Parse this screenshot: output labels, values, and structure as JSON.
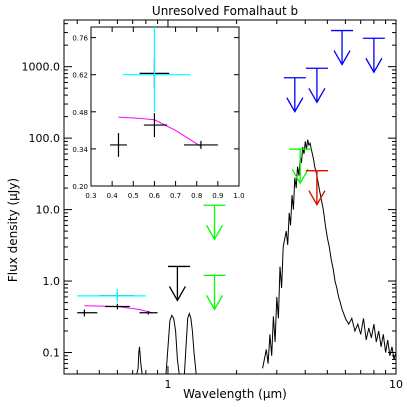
{
  "chart_data": [
    {
      "type": "scatter",
      "title": "Unresolved Fomalhaut b",
      "xlabel": "Wavelength (μm)",
      "ylabel": "Flux density (μJy)",
      "xscale": "log",
      "yscale": "log",
      "xlim": [
        0.35,
        10
      ],
      "ylim": [
        0.05,
        4500
      ],
      "x_tick_labels": [
        "1",
        "10"
      ],
      "y_tick_labels": [
        "0.1",
        "1.0",
        "10.0",
        "100.0",
        "1000.0"
      ],
      "series": [
        {
          "kind": "model_spectrum",
          "color": "#000000",
          "x": [
            2.6,
            2.7,
            2.75,
            2.8,
            2.85,
            2.9,
            2.95,
            3.0,
            3.05,
            3.1,
            3.15,
            3.2,
            3.3,
            3.35,
            3.4,
            3.45,
            3.5,
            3.55,
            3.6,
            3.65,
            3.7,
            3.75,
            3.8,
            3.85,
            3.9,
            3.95,
            4.0,
            4.05,
            4.1,
            4.15,
            4.2,
            4.25,
            4.3,
            4.35,
            4.4,
            4.5,
            4.6,
            4.7,
            4.8,
            4.9,
            5.0,
            5.1,
            5.2,
            5.3,
            5.4,
            5.5,
            5.6,
            5.7,
            5.8,
            5.9,
            6.0,
            6.2,
            6.4,
            6.6,
            6.8,
            7.0,
            7.2,
            7.4,
            7.6,
            7.8,
            8.0,
            8.2,
            8.4,
            8.6,
            8.8,
            9.0,
            9.2,
            9.4,
            9.6,
            9.8,
            10.0
          ],
          "y": [
            0.06,
            0.11,
            0.07,
            0.18,
            0.09,
            0.32,
            0.14,
            0.6,
            0.3,
            1.6,
            0.8,
            3.0,
            5.0,
            3.2,
            9.0,
            6.0,
            16.0,
            10.0,
            28.0,
            20.0,
            40.0,
            30.0,
            55.0,
            45.0,
            75.0,
            60.0,
            90.0,
            70.0,
            95.0,
            80.0,
            85.0,
            70.0,
            60.0,
            50.0,
            40.0,
            30.0,
            20.0,
            14.0,
            10.0,
            6.0,
            4.0,
            3.0,
            2.0,
            1.5,
            1.0,
            0.8,
            0.6,
            0.5,
            0.4,
            0.35,
            0.3,
            0.25,
            0.3,
            0.2,
            0.25,
            0.18,
            0.3,
            0.15,
            0.22,
            0.16,
            0.25,
            0.14,
            0.2,
            0.12,
            0.18,
            0.1,
            0.15,
            0.09,
            0.12,
            0.08,
            0.1
          ]
        },
        {
          "kind": "model_spectrum",
          "color": "#000000",
          "x": [
            0.73,
            0.74,
            0.745,
            0.75,
            0.76,
            0.77
          ],
          "y": [
            0.05,
            0.06,
            0.1,
            0.12,
            0.07,
            0.05
          ]
        },
        {
          "kind": "model_spectrum",
          "color": "#000000",
          "x": [
            0.98,
            1.0,
            1.02,
            1.04,
            1.06,
            1.08,
            1.1,
            1.12
          ],
          "y": [
            0.05,
            0.12,
            0.28,
            0.33,
            0.3,
            0.2,
            0.08,
            0.05
          ]
        },
        {
          "kind": "model_spectrum",
          "color": "#000000",
          "x": [
            1.18,
            1.2,
            1.22,
            1.24,
            1.26,
            1.28,
            1.3,
            1.33
          ],
          "y": [
            0.05,
            0.12,
            0.3,
            0.35,
            0.3,
            0.2,
            0.1,
            0.05
          ]
        },
        {
          "kind": "fit_curve",
          "color": "#ff00ff",
          "x": [
            0.43,
            0.6,
            0.75,
            0.85
          ],
          "y": [
            0.45,
            0.44,
            0.4,
            0.36
          ]
        },
        {
          "kind": "errorbar",
          "color": "#000000",
          "points": [
            {
              "x": 0.43,
              "y": 0.36,
              "xlo": 0.4,
              "xhi": 0.49,
              "ylo": 0.32,
              "yhi": 0.4
            },
            {
              "x": 0.6,
              "y": 0.44,
              "xlo": 0.53,
              "xhi": 0.68,
              "ylo": 0.4,
              "yhi": 0.48
            },
            {
              "x": 0.6,
              "y": 0.62,
              "xlo": 0.5,
              "xhi": 0.71,
              "ylo": 0.55,
              "yhi": 0.7
            },
            {
              "x": 0.82,
              "y": 0.36,
              "xlo": 0.75,
              "xhi": 0.9,
              "ylo": 0.34,
              "yhi": 0.38
            }
          ]
        },
        {
          "kind": "errorbar",
          "color": "#00ffff",
          "points": [
            {
              "x": 0.6,
              "y": 0.62,
              "xlo": 0.4,
              "xhi": 0.8,
              "ylo": 0.5,
              "yhi": 0.78
            }
          ]
        },
        {
          "kind": "upper_limit",
          "color": "#000000",
          "points": [
            {
              "x": 1.1,
              "y": 1.6,
              "xlo": 1.0,
              "xhi": 1.25
            }
          ]
        },
        {
          "kind": "upper_limit",
          "color": "#00ff00",
          "points": [
            {
              "x": 1.6,
              "y": 11.5
            },
            {
              "x": 1.6,
              "y": 1.2
            },
            {
              "x": 3.8,
              "y": 70.0
            },
            {
              "x": 4.5,
              "y": 35.0
            }
          ]
        },
        {
          "kind": "upper_limit",
          "color": "#ff0000",
          "points": [
            {
              "x": 4.5,
              "y": 35.0
            }
          ]
        },
        {
          "kind": "upper_limit",
          "color": "#0000ff",
          "points": [
            {
              "x": 3.6,
              "y": 700.0
            },
            {
              "x": 4.5,
              "y": 950.0
            },
            {
              "x": 5.8,
              "y": 3200.0
            },
            {
              "x": 8.0,
              "y": 2500.0
            }
          ]
        }
      ]
    },
    {
      "type": "scatter",
      "title": "",
      "xlabel": "",
      "ylabel": "",
      "xlim": [
        0.3,
        1.0
      ],
      "ylim": [
        0.2,
        0.8
      ],
      "x_tick_labels": [
        "0.3",
        "0.4",
        "0.5",
        "0.6",
        "0.7",
        "0.8",
        "0.9",
        "1.0"
      ],
      "y_tick_labels": [
        "0.20",
        "0.34",
        "0.48",
        "0.62",
        "0.76"
      ],
      "series": [
        {
          "kind": "fit_curve",
          "color": "#ff00ff",
          "x": [
            0.43,
            0.53,
            0.6,
            0.7,
            0.82
          ],
          "y": [
            0.46,
            0.455,
            0.45,
            0.41,
            0.35
          ]
        },
        {
          "kind": "errorbar",
          "color": "#000000",
          "points": [
            {
              "x": 0.43,
              "y": 0.355,
              "xlo": 0.39,
              "xhi": 0.47,
              "ylo": 0.31,
              "yhi": 0.4
            },
            {
              "x": 0.6,
              "y": 0.43,
              "xlo": 0.55,
              "xhi": 0.66,
              "ylo": 0.385,
              "yhi": 0.475
            },
            {
              "x": 0.6,
              "y": 0.625,
              "xlo": 0.53,
              "xhi": 0.67,
              "ylo": 0.57,
              "yhi": 0.68
            },
            {
              "x": 0.82,
              "y": 0.355,
              "xlo": 0.74,
              "xhi": 0.9,
              "ylo": 0.34,
              "yhi": 0.37
            }
          ]
        },
        {
          "kind": "errorbar",
          "color": "#00ffff",
          "points": [
            {
              "x": 0.6,
              "y": 0.62,
              "xlo": 0.45,
              "xhi": 0.77,
              "ylo": 0.48,
              "yhi": 0.8
            }
          ]
        }
      ]
    }
  ]
}
